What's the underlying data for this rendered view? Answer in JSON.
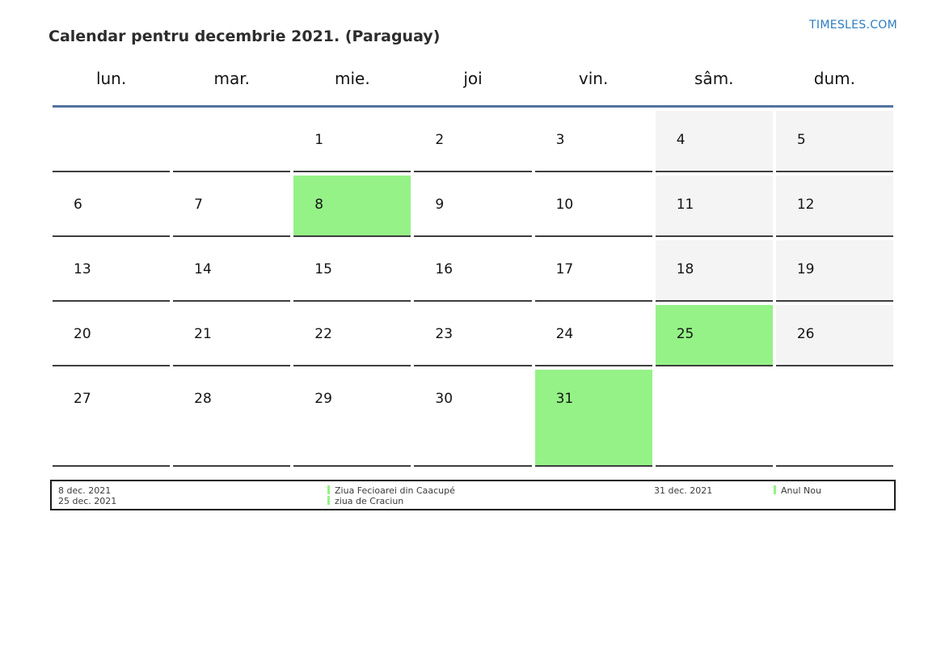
{
  "page": {
    "title": "Calendar pentru decembrie 2021. (Paraguay)",
    "site_link": "TIMESLES.COM"
  },
  "calendar": {
    "weekdays": [
      "lun.",
      "mar.",
      "mie.",
      "joi",
      "vin.",
      "sâm.",
      "dum."
    ],
    "weeks": [
      [
        {
          "day": "",
          "type": "empty"
        },
        {
          "day": "",
          "type": "empty"
        },
        {
          "day": "1",
          "type": "normal"
        },
        {
          "day": "2",
          "type": "normal"
        },
        {
          "day": "3",
          "type": "normal"
        },
        {
          "day": "4",
          "type": "weekend"
        },
        {
          "day": "5",
          "type": "weekend"
        }
      ],
      [
        {
          "day": "6",
          "type": "normal"
        },
        {
          "day": "7",
          "type": "normal"
        },
        {
          "day": "8",
          "type": "holiday"
        },
        {
          "day": "9",
          "type": "normal"
        },
        {
          "day": "10",
          "type": "normal"
        },
        {
          "day": "11",
          "type": "weekend"
        },
        {
          "day": "12",
          "type": "weekend"
        }
      ],
      [
        {
          "day": "13",
          "type": "normal"
        },
        {
          "day": "14",
          "type": "normal"
        },
        {
          "day": "15",
          "type": "normal"
        },
        {
          "day": "16",
          "type": "normal"
        },
        {
          "day": "17",
          "type": "normal"
        },
        {
          "day": "18",
          "type": "weekend"
        },
        {
          "day": "19",
          "type": "weekend"
        }
      ],
      [
        {
          "day": "20",
          "type": "normal"
        },
        {
          "day": "21",
          "type": "normal"
        },
        {
          "day": "22",
          "type": "normal"
        },
        {
          "day": "23",
          "type": "normal"
        },
        {
          "day": "24",
          "type": "normal"
        },
        {
          "day": "25",
          "type": "holiday"
        },
        {
          "day": "26",
          "type": "weekend"
        }
      ],
      [
        {
          "day": "27",
          "type": "normal"
        },
        {
          "day": "28",
          "type": "normal"
        },
        {
          "day": "29",
          "type": "normal"
        },
        {
          "day": "30",
          "type": "normal"
        },
        {
          "day": "31",
          "type": "holiday"
        },
        {
          "day": "",
          "type": "empty"
        },
        {
          "day": "",
          "type": "empty"
        }
      ]
    ]
  },
  "legend": {
    "group1": {
      "dates": [
        "8 dec. 2021",
        "25 dec. 2021"
      ],
      "names": [
        "Ziua Fecioarei din Caacupé",
        "ziua de Craciun"
      ]
    },
    "group2": {
      "dates": [
        "31 dec. 2021"
      ],
      "names": [
        "Anul Nou"
      ]
    }
  },
  "colors": {
    "holiday_green": "#95f287",
    "weekend_gray": "#f4f4f4",
    "header_line_blue": "#53739e",
    "site_link_blue": "#2e7cc0",
    "cell_border": "#3e3e3e"
  }
}
